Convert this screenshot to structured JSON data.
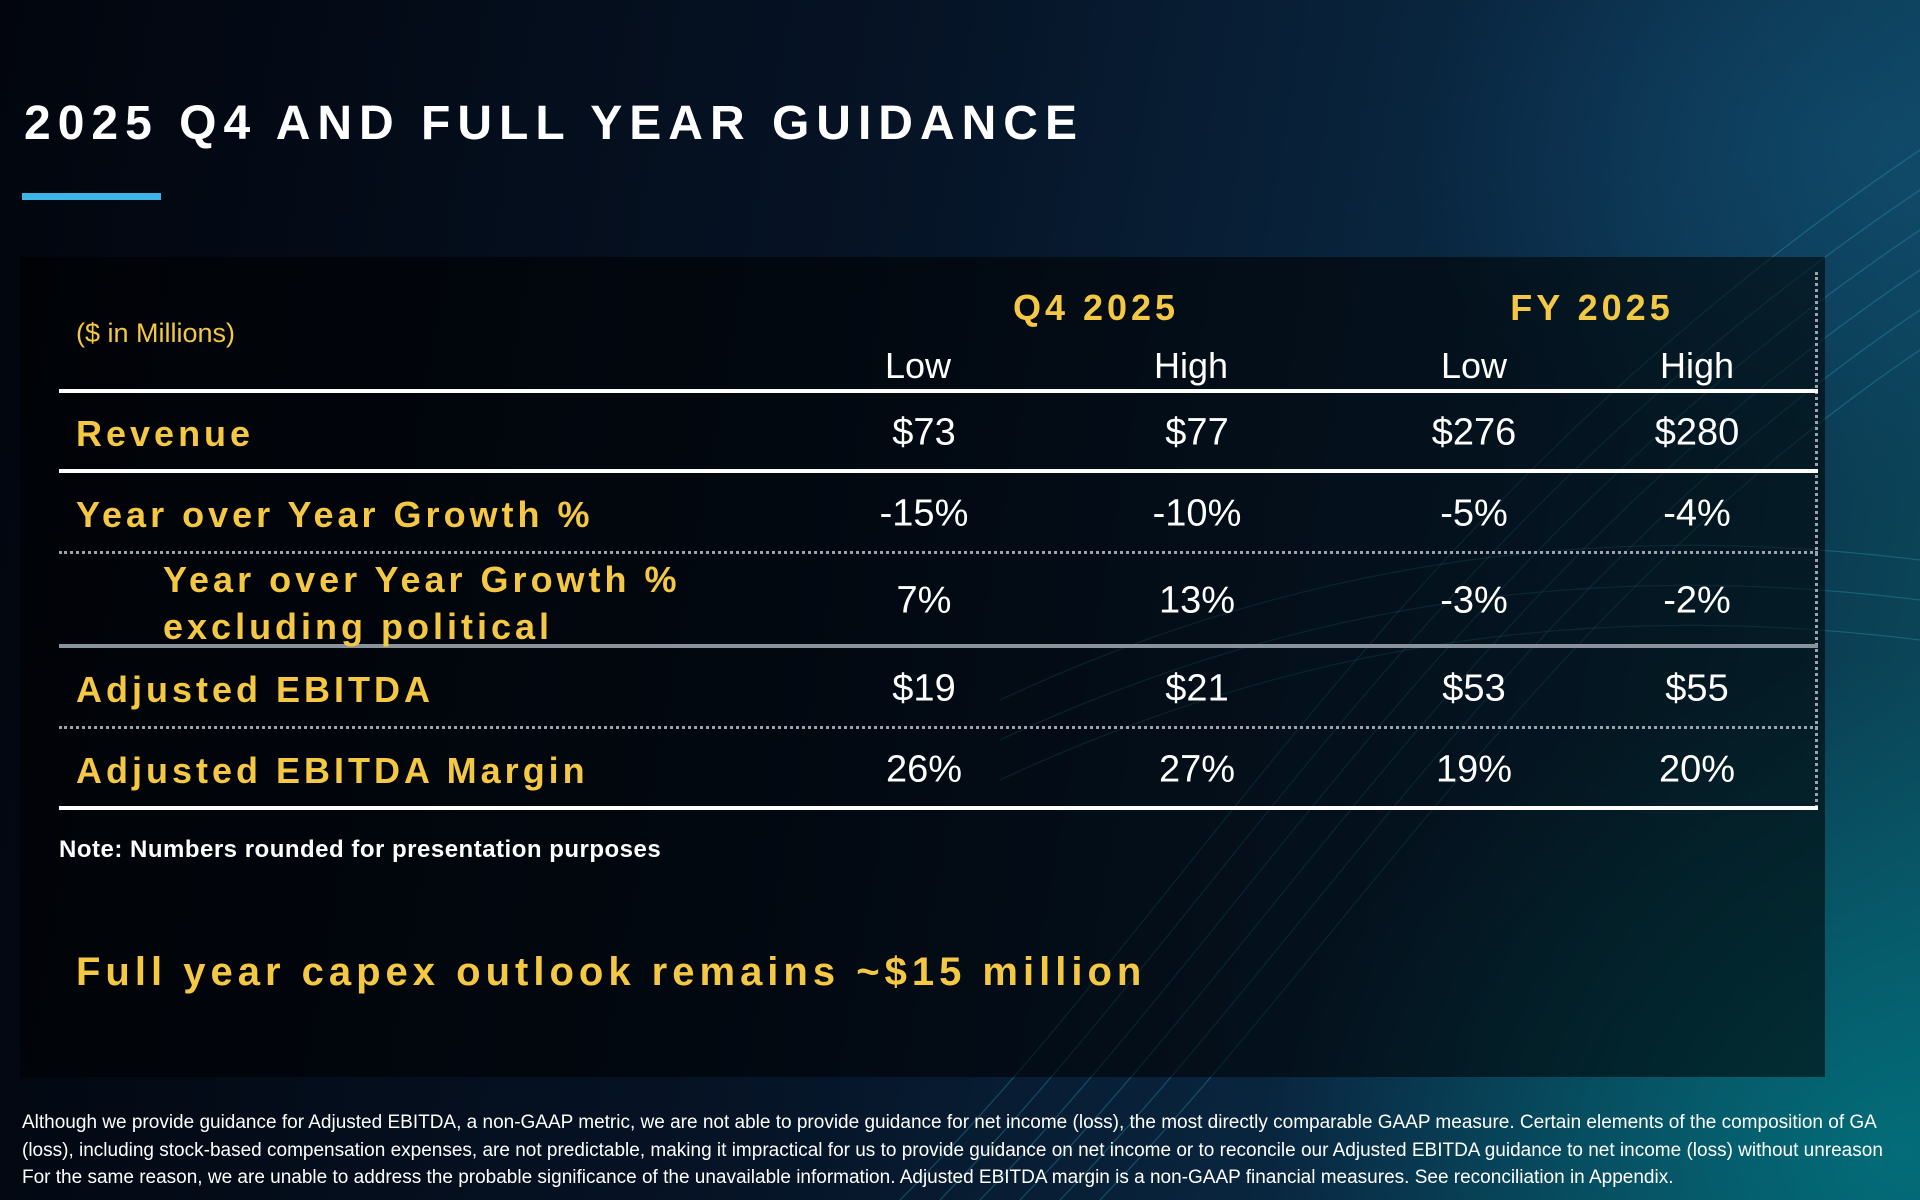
{
  "title": "2025 Q4 AND FULL YEAR GUIDANCE",
  "colors": {
    "accent_blue": "#3db5e6",
    "label_gold": "#f5c843",
    "value_white": "#ffffff"
  },
  "table": {
    "units": "($ in Millions)",
    "periods": [
      {
        "label": "Q4 2025",
        "sub": [
          "Low",
          "High"
        ]
      },
      {
        "label": "FY 2025",
        "sub": [
          "Low",
          "High"
        ]
      }
    ],
    "rows": [
      {
        "label": "Revenue",
        "values": [
          "$73",
          "$77",
          "$276",
          "$280"
        ]
      },
      {
        "label": "Year over Year Growth %",
        "values": [
          "-15%",
          "-10%",
          "-5%",
          "-4%"
        ]
      },
      {
        "label": "Year over Year Growth %",
        "label2": "excluding political",
        "values": [
          "7%",
          "13%",
          "-3%",
          "-2%"
        ]
      },
      {
        "label": "Adjusted EBITDA",
        "values": [
          "$19",
          "$21",
          "$53",
          "$55"
        ]
      },
      {
        "label": "Adjusted EBITDA Margin",
        "values": [
          "26%",
          "27%",
          "19%",
          "20%"
        ]
      }
    ]
  },
  "note": "Note: Numbers rounded for presentation purposes",
  "capex": "Full year capex outlook remains ~$15 million",
  "footnote": [
    "Although we provide guidance for Adjusted EBITDA, a non-GAAP metric, we are not able to provide guidance for net income (loss), the most directly comparable GAAP measure. Certain elements of the composition of GA",
    "(loss), including stock-based compensation expenses, are not predictable, making it impractical for us to provide guidance on net income or to reconcile our Adjusted EBITDA guidance to net income (loss) without unreason",
    "For the same reason, we are unable to address the probable significance of the unavailable information.  Adjusted EBITDA margin is a non-GAAP financial measures. See reconciliation in Appendix."
  ]
}
